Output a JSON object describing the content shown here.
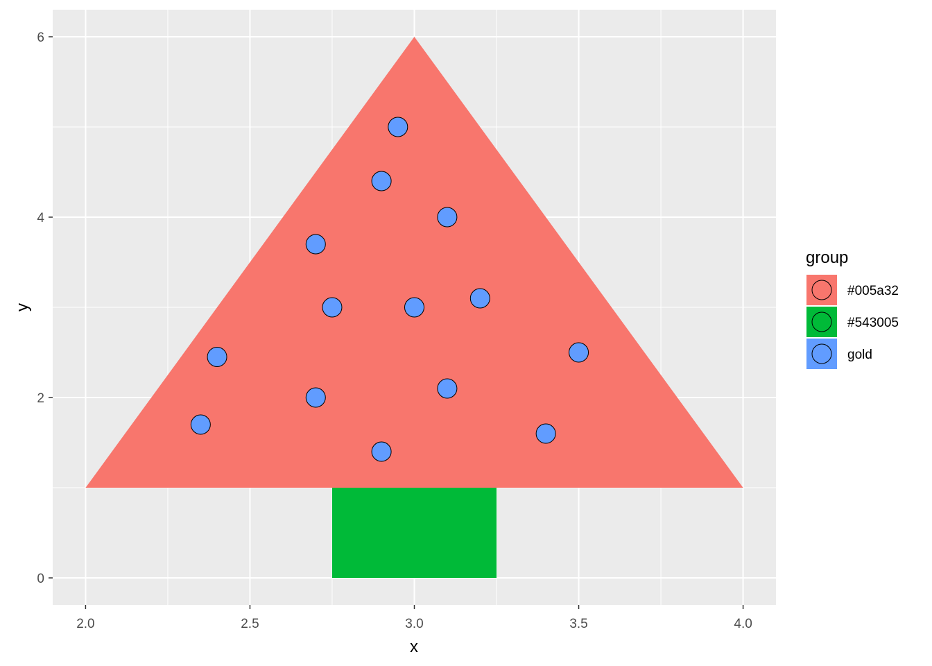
{
  "chart_data": {
    "type": "scatter",
    "xlabel": "x",
    "ylabel": "y",
    "xlim": [
      1.9,
      4.1
    ],
    "ylim": [
      -0.3,
      6.3
    ],
    "x_ticks": [
      2.0,
      2.5,
      3.0,
      3.5,
      4.0
    ],
    "x_tick_labels": [
      "2.0",
      "2.5",
      "3.0",
      "3.5",
      "4.0"
    ],
    "y_ticks": [
      0,
      2,
      4,
      6
    ],
    "y_tick_labels": [
      "0",
      "2",
      "4",
      "6"
    ],
    "grid": true,
    "background": "#ebebeb",
    "legend": {
      "title": "group",
      "position": "right",
      "entries": [
        {
          "label": "#005a32",
          "color": "#f8766d"
        },
        {
          "label": "#543005",
          "color": "#00ba38"
        },
        {
          "label": "gold",
          "color": "#619cff"
        }
      ]
    },
    "polygons": [
      {
        "group": "#005a32",
        "color": "#f8766d",
        "points": [
          [
            2.0,
            1.0
          ],
          [
            3.0,
            6.0
          ],
          [
            4.0,
            1.0
          ]
        ]
      },
      {
        "group": "#543005",
        "color": "#00ba38",
        "points": [
          [
            2.75,
            0.0
          ],
          [
            3.25,
            0.0
          ],
          [
            3.25,
            1.0
          ],
          [
            2.75,
            1.0
          ]
        ]
      }
    ],
    "series": [
      {
        "group": "gold",
        "color": "#619cff",
        "points": [
          [
            2.95,
            5.0
          ],
          [
            2.9,
            4.4
          ],
          [
            3.1,
            4.0
          ],
          [
            2.7,
            3.7
          ],
          [
            2.75,
            3.0
          ],
          [
            3.0,
            3.0
          ],
          [
            3.2,
            3.1
          ],
          [
            2.4,
            2.45
          ],
          [
            3.5,
            2.5
          ],
          [
            2.7,
            2.0
          ],
          [
            3.1,
            2.1
          ],
          [
            2.35,
            1.7
          ],
          [
            3.4,
            1.6
          ],
          [
            2.9,
            1.4
          ]
        ]
      }
    ]
  }
}
